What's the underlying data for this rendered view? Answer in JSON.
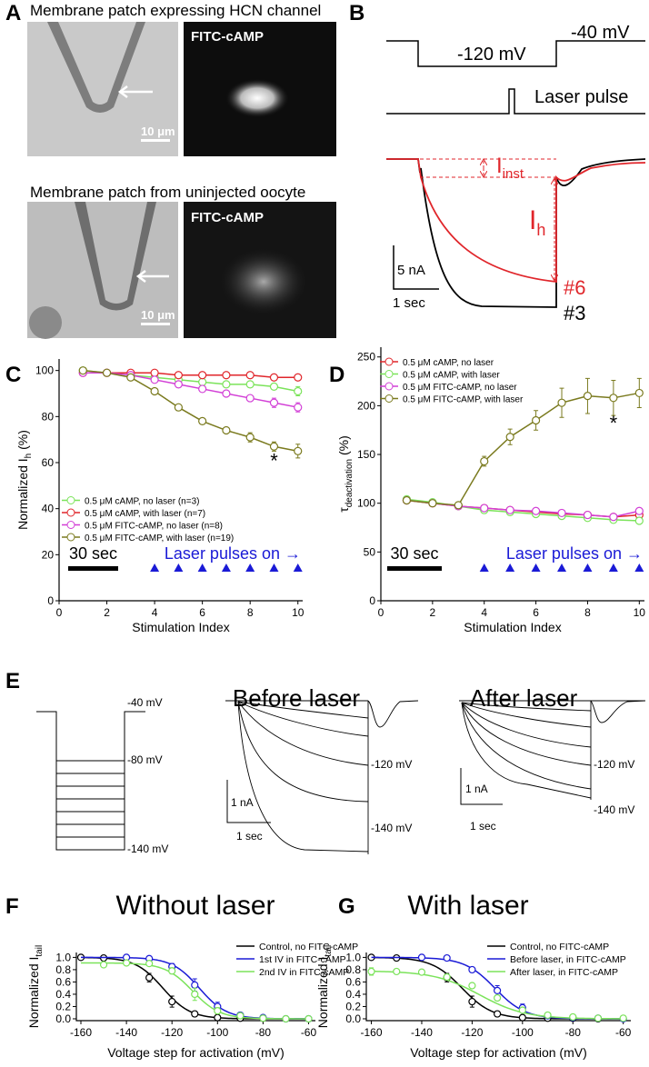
{
  "panel_a": {
    "label": "A",
    "top": {
      "title": "Membrane patch expressing HCN channel",
      "stain": "FITC-cAMP",
      "scale": "10 μm"
    },
    "bottom": {
      "title": "Membrane patch from uninjected oocyte",
      "stain": "FITC-cAMP",
      "scale": "10 μm"
    }
  },
  "panel_b": {
    "label": "B",
    "v_hold": "-40 mV",
    "v_step": "-120 mV",
    "laser": "Laser pulse",
    "i_inst": {
      "main": "I",
      "sub": "inst"
    },
    "i_h": {
      "main": "I",
      "sub": "h"
    },
    "scale_current": "5 nA",
    "scale_time": "1 sec",
    "trace_red": "#6",
    "trace_black": "#3"
  },
  "panel_e": {
    "label": "E",
    "protocol": [
      "-40 mV",
      "-80 mV",
      "-140 mV"
    ],
    "before": {
      "title": "Before laser",
      "levels": [
        "-120 mV",
        "-140 mV"
      ],
      "scale_current": "1 nA",
      "scale_time": "1 sec"
    },
    "after": {
      "title": "After laser",
      "levels": [
        "-120 mV",
        "-140 mV"
      ],
      "scale_current": "1 nA",
      "scale_time": "1 sec"
    }
  },
  "chart_data": [
    {
      "type": "line",
      "panel": "C",
      "xlabel": "Stimulation Index",
      "ylabel": {
        "text": "Normalized I",
        "sub": "h",
        "tail": " (%)"
      },
      "x": [
        1,
        2,
        3,
        4,
        5,
        6,
        7,
        8,
        9,
        10
      ],
      "xlim": [
        0,
        10.2
      ],
      "xticks": [
        0,
        2,
        4,
        6,
        8,
        10
      ],
      "ylim": [
        0,
        105
      ],
      "yticks": [
        0,
        20,
        40,
        60,
        80,
        100
      ],
      "legend": "lower left",
      "scale_bar": "30 sec",
      "laser_label": "Laser pulses on →",
      "laser_pulses": [
        4,
        5,
        6,
        7,
        8,
        9,
        10
      ],
      "annotation": "*",
      "series": [
        {
          "name": "0.5 μM cAMP, no laser (n=3)",
          "color": "#7be35a",
          "values": [
            100,
            99,
            98,
            97,
            96,
            95,
            94,
            94,
            93,
            91
          ],
          "errors": [
            1,
            1,
            1,
            1,
            1,
            1,
            1,
            1,
            1,
            2
          ]
        },
        {
          "name": "0.5 μM cAMP, with laser (n=7)",
          "color": "#e0262b",
          "values": [
            99,
            99,
            99,
            99,
            98,
            98,
            98,
            98,
            97,
            97
          ],
          "errors": [
            1,
            1,
            1,
            1,
            1,
            1,
            1,
            1,
            1,
            1
          ]
        },
        {
          "name": "0.5 μM FITC-cAMP, no laser (n=8)",
          "color": "#d23fd6",
          "values": [
            99,
            99,
            98,
            96,
            94,
            92,
            90,
            88,
            86,
            84
          ],
          "errors": [
            1,
            1,
            1,
            1,
            1,
            1,
            1,
            1,
            2,
            2
          ]
        },
        {
          "name": "0.5 μM FITC-cAMP, with laser (n=19)",
          "color": "#7a7a1e",
          "values": [
            100,
            99,
            97,
            91,
            84,
            78,
            74,
            71,
            67,
            65
          ],
          "errors": [
            1,
            1,
            1,
            1,
            1,
            1,
            1,
            2,
            2,
            3
          ]
        }
      ]
    },
    {
      "type": "line",
      "panel": "D",
      "xlabel": "Stimulation Index",
      "ylabel": {
        "text": "τ",
        "sub": "deactivation",
        "tail": " (%)"
      },
      "x": [
        1,
        2,
        3,
        4,
        5,
        6,
        7,
        8,
        9,
        10
      ],
      "xlim": [
        0,
        10.2
      ],
      "xticks": [
        0,
        2,
        4,
        6,
        8,
        10
      ],
      "ylim": [
        0,
        260
      ],
      "yticks": [
        0,
        50,
        100,
        150,
        200,
        250
      ],
      "legend": "upper left",
      "scale_bar": "30 sec",
      "laser_label": "Laser pulses on →",
      "laser_pulses": [
        4,
        5,
        6,
        7,
        8,
        9,
        10
      ],
      "annotation": "*",
      "series": [
        {
          "name": "0.5 μM cAMP, no laser",
          "color": "#e0262b",
          "values": [
            103,
            100,
            97,
            95,
            93,
            91,
            89,
            88,
            86,
            88
          ],
          "errors": [
            3,
            3,
            3,
            3,
            3,
            3,
            3,
            3,
            3,
            3
          ]
        },
        {
          "name": "0.5 μM cAMP, with laser",
          "color": "#7be35a",
          "values": [
            104,
            101,
            97,
            93,
            91,
            89,
            87,
            85,
            83,
            82
          ],
          "errors": [
            3,
            3,
            3,
            3,
            3,
            3,
            3,
            3,
            3,
            3
          ]
        },
        {
          "name": "0.5 μM FITC-cAMP, no laser",
          "color": "#d23fd6",
          "values": [
            103,
            100,
            97,
            95,
            93,
            92,
            90,
            88,
            86,
            92
          ],
          "errors": [
            3,
            3,
            3,
            3,
            3,
            3,
            3,
            3,
            3,
            3
          ]
        },
        {
          "name": "0.5 μM FITC-cAMP, with laser",
          "color": "#7a7a1e",
          "values": [
            103,
            100,
            98,
            143,
            168,
            185,
            203,
            210,
            208,
            213
          ],
          "errors": [
            3,
            3,
            3,
            5,
            8,
            10,
            15,
            18,
            18,
            15
          ]
        }
      ]
    },
    {
      "type": "fit",
      "panel": "F",
      "title": "Without laser",
      "xlabel": "Voltage step for activation (mV)",
      "ylabel": {
        "text": "Normalized I",
        "sub": "tail",
        "tail": ""
      },
      "xlim": [
        -162,
        -57
      ],
      "xticks": [
        -160,
        -140,
        -120,
        -100,
        -80,
        -60
      ],
      "ylim": [
        -0.03,
        1.08
      ],
      "yticks": [
        {
          "value": 0,
          "label": "0.0"
        },
        0.2,
        0.4,
        0.6,
        0.8,
        {
          "value": 1,
          "label": "1.0"
        }
      ],
      "legend": "upper right",
      "series": [
        {
          "name": "Control, no FITC-cAMP",
          "color": "#000000",
          "x": [
            -160,
            -150,
            -130,
            -120,
            -110,
            -100,
            -90,
            -80
          ],
          "values": [
            1.0,
            0.99,
            0.67,
            0.28,
            0.08,
            0.02,
            0.01,
            0.01
          ],
          "errors": [
            0.02,
            0.02,
            0.07,
            0.09,
            0.04,
            0.02,
            0.01,
            0.01
          ],
          "fit": {
            "top": 1.0,
            "vhalf": -124,
            "k": 6
          }
        },
        {
          "name": "1st IV in FITC-cAMP",
          "color": "#1a1ad6",
          "x": [
            -140,
            -130,
            -120,
            -110,
            -100,
            -90,
            -80,
            -70,
            -60
          ],
          "values": [
            1.0,
            0.98,
            0.85,
            0.55,
            0.2,
            0.06,
            0.02,
            0.0,
            0.0
          ],
          "errors": [
            0.01,
            0.02,
            0.05,
            0.1,
            0.07,
            0.03,
            0.01,
            0.01,
            0.01
          ],
          "fit": {
            "top": 1.0,
            "vhalf": -108,
            "k": 6
          }
        },
        {
          "name": "2nd IV in FITC-cAMP",
          "color": "#7be35a",
          "x": [
            -150,
            -140,
            -130,
            -120,
            -110,
            -100,
            -90,
            -80,
            -70,
            -60
          ],
          "values": [
            0.88,
            0.91,
            0.9,
            0.78,
            0.4,
            0.13,
            0.05,
            0.01,
            0.0,
            0.0
          ],
          "errors": [
            0.02,
            0.02,
            0.02,
            0.05,
            0.1,
            0.05,
            0.02,
            0.01,
            0.01,
            0.01
          ],
          "fit": {
            "top": 0.91,
            "vhalf": -111,
            "k": 6
          }
        }
      ]
    },
    {
      "type": "fit",
      "panel": "G",
      "title": "With laser",
      "xlabel": "Voltage step for activation (mV)",
      "ylabel": {
        "text": "Normalized I",
        "sub": "tail",
        "tail": ""
      },
      "xlim": [
        -162,
        -57
      ],
      "xticks": [
        -160,
        -140,
        -120,
        -100,
        -80,
        -60
      ],
      "ylim": [
        -0.03,
        1.08
      ],
      "yticks": [
        {
          "value": 0,
          "label": "0.0"
        },
        0.2,
        0.4,
        0.6,
        0.8,
        {
          "value": 1,
          "label": "1.0"
        }
      ],
      "legend": "upper right",
      "series": [
        {
          "name": "Control, no FITC-cAMP",
          "color": "#000000",
          "x": [
            -160,
            -150,
            -130,
            -120,
            -110,
            -100,
            -90,
            -80,
            -70
          ],
          "values": [
            1.0,
            0.99,
            0.67,
            0.28,
            0.08,
            0.02,
            0.01,
            0.01,
            0.0
          ],
          "errors": [
            0.02,
            0.02,
            0.07,
            0.09,
            0.04,
            0.02,
            0.01,
            0.01,
            0.01
          ],
          "fit": {
            "top": 1.0,
            "vhalf": -124,
            "k": 6
          }
        },
        {
          "name": "Before laser, in FITC-cAMP",
          "color": "#1a1ad6",
          "x": [
            -140,
            -130,
            -120,
            -110,
            -100,
            -90,
            -80,
            -70,
            -60
          ],
          "values": [
            1.0,
            0.99,
            0.8,
            0.46,
            0.18,
            0.05,
            0.02,
            0.01,
            0.0
          ],
          "errors": [
            0.01,
            0.01,
            0.04,
            0.08,
            0.06,
            0.02,
            0.01,
            0.01,
            0.01
          ],
          "fit": {
            "top": 1.0,
            "vhalf": -111,
            "k": 6
          }
        },
        {
          "name": "After laser, in FITC-cAMP",
          "color": "#7be35a",
          "x": [
            -160,
            -150,
            -140,
            -130,
            -120,
            -110,
            -100,
            -90,
            -80,
            -70,
            -60
          ],
          "values": [
            0.77,
            0.77,
            0.76,
            0.68,
            0.54,
            0.34,
            0.14,
            0.06,
            0.03,
            0.01,
            0.01
          ],
          "errors": [
            0.06,
            0.03,
            0.02,
            0.03,
            0.04,
            0.04,
            0.03,
            0.02,
            0.01,
            0.01,
            0.01
          ],
          "fit": {
            "top": 0.78,
            "vhalf": -117,
            "k": 9
          }
        }
      ]
    }
  ]
}
